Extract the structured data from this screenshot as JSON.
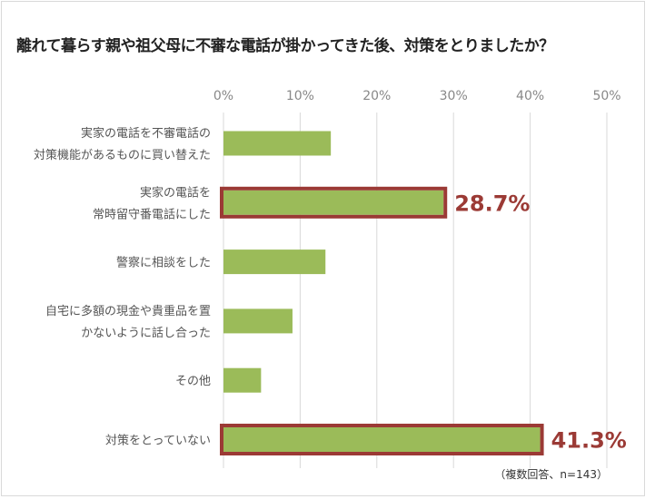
{
  "chart_data": {
    "type": "bar",
    "orientation": "horizontal",
    "title": "離れて暮らす親や祖父母に不審な電話が掛かってきた後、対策をとりましたか？",
    "note": "（複数回答、n=143）",
    "categories": [
      [
        "実家の電話を不審電話の",
        "対策機能があるものに買い替えた"
      ],
      [
        "実家の電話を",
        "常時留守番電話にした"
      ],
      [
        "警察に相談をした"
      ],
      [
        "自宅に多額の現金や貴重品を置",
        "かないように話し合った"
      ],
      [
        "その他"
      ],
      [
        "対策をとっていない"
      ]
    ],
    "values": [
      14.0,
      28.7,
      13.3,
      9.0,
      4.9,
      41.3
    ],
    "highlighted": [
      false,
      true,
      false,
      false,
      false,
      true
    ],
    "data_labels": [
      "",
      "28.7%",
      "",
      "",
      "",
      "41.3%"
    ],
    "xlim": [
      0,
      50
    ],
    "xticks": [
      "0%",
      "10%",
      "20%",
      "30%",
      "40%",
      "50%"
    ],
    "grid": true,
    "colors": {
      "bar": "#9bbb59",
      "highlight": "#9b3a35"
    }
  }
}
